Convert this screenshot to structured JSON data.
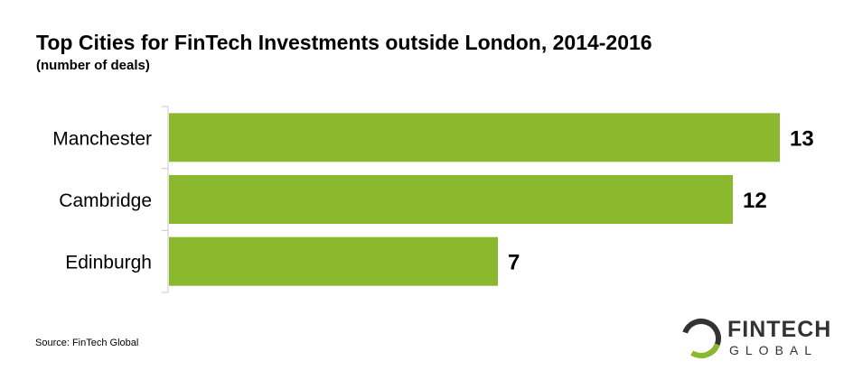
{
  "chart_data": {
    "type": "bar",
    "orientation": "horizontal",
    "title": "Top Cities for FinTech Investments outside London, 2014-2016",
    "subtitle": "(number of deals)",
    "categories": [
      "Manchester",
      "Cambridge",
      "Edinburgh"
    ],
    "values": [
      13,
      12,
      7
    ],
    "xlim": [
      0,
      13
    ],
    "grid": false,
    "legend": "none",
    "data_labels": true,
    "bar_color": "#8ab92d"
  },
  "source": "Source: FinTech Global",
  "logo": {
    "line1": "FINTECH",
    "line2": "GLOBAL",
    "accent": "#8ab92d"
  }
}
